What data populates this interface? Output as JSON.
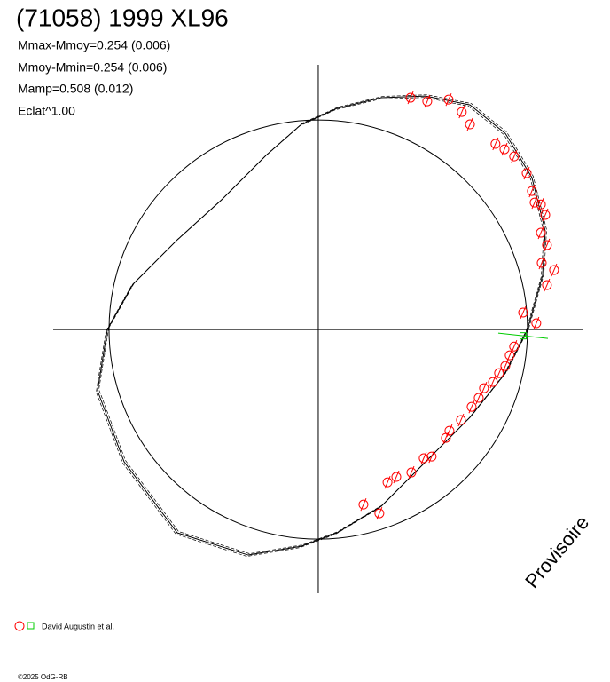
{
  "chart_data": {
    "type": "polar-lightcurve",
    "title": "(71058) 1999 XL96",
    "annotations": [
      "Mmax-Mmoy=0.254 (0.006)",
      "Mmoy-Mmin=0.254 (0.006)",
      "Mamp=0.508 (0.012)",
      "Eclat^1.00"
    ],
    "watermark": "Provisoire",
    "copyright": "©2025 OdG-RB",
    "xlim": [
      -1.267,
      1.263
    ],
    "ylim": [
      -1.258,
      1.263
    ],
    "reference_circle": 1,
    "model": {
      "color": "#000000",
      "x": [
        -1.008,
        -0.886,
        -0.674,
        -0.462,
        -0.25,
        -0.081,
        0.089,
        0.301,
        0.513,
        0.725,
        0.894,
        1.021,
        1.085,
        1.072,
        1.0,
        0.894,
        0.725,
        0.513,
        0.301,
        0.089,
        -0.081,
        -0.335,
        -0.674,
        -0.928,
        -1.055,
        -1.008
      ],
      "y": [
        0,
        0.216,
        0.428,
        0.619,
        0.831,
        0.979,
        1.055,
        1.106,
        1.114,
        1.072,
        0.936,
        0.725,
        0.47,
        0.258,
        0,
        -0.208,
        -0.419,
        -0.631,
        -0.843,
        -0.97,
        -1.034,
        -1.076,
        -0.97,
        -0.631,
        -0.292,
        0
      ]
    },
    "series": [
      {
        "name": "David Augustin et al.",
        "color": "#ff0000",
        "start_color": "#00cc00",
        "start": {
          "x": 0.979,
          "y": -0.03
        },
        "x": [
          0.441,
          0.521,
          0.623,
          0.686,
          0.725,
          0.847,
          0.89,
          0.936,
          0.996,
          1.021,
          1.034,
          1.064,
          1.085,
          1.064,
          1.093,
          1.068,
          1.127,
          1.093,
          1.042,
          0.979,
          0.936,
          0.915,
          0.894,
          0.864,
          0.835,
          0.792,
          0.767,
          0.733,
          0.682,
          0.627,
          0.61,
          0.542,
          0.504,
          0.445,
          0.373,
          0.331,
          0.216,
          0.292
        ],
        "y": [
          1.106,
          1.089,
          1.097,
          1.038,
          0.979,
          0.886,
          0.86,
          0.826,
          0.746,
          0.661,
          0.606,
          0.597,
          0.547,
          0.462,
          0.403,
          0.318,
          0.284,
          0.212,
          0.03,
          0.081,
          -0.081,
          -0.123,
          -0.174,
          -0.208,
          -0.25,
          -0.28,
          -0.326,
          -0.369,
          -0.432,
          -0.483,
          -0.517,
          -0.606,
          -0.614,
          -0.682,
          -0.703,
          -0.729,
          -0.835,
          -0.877
        ]
      }
    ]
  }
}
